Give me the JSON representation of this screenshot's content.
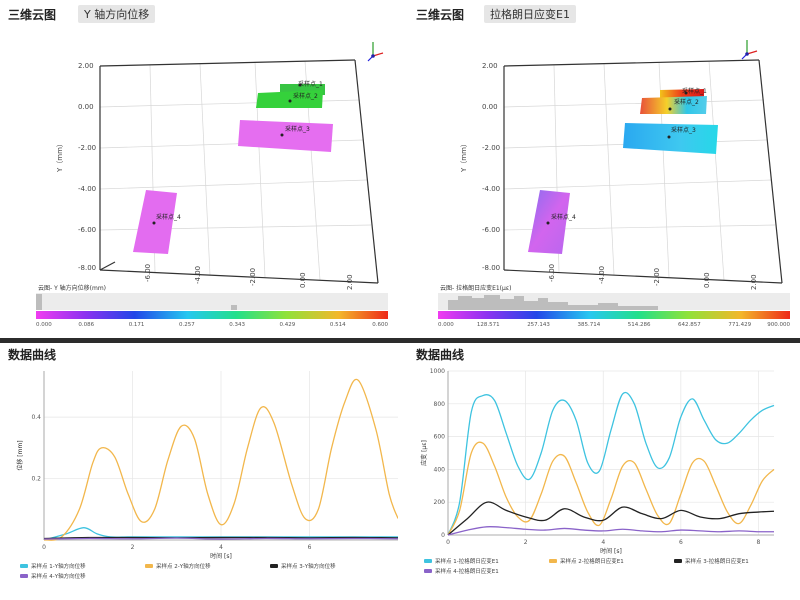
{
  "left_top": {
    "title": "三维云图",
    "badge": "Y 轴方向位移",
    "y_axis_label": "Y（mm）",
    "y_ticks": [
      "2.00",
      "0.00",
      "-2.00",
      "-4.00",
      "-6.00",
      "-8.00"
    ],
    "x_ticks": [
      "-6.00",
      "-4.00",
      "-2.00",
      "0.00",
      "2.00"
    ],
    "points": [
      "采样点_1",
      "采样点_2",
      "采样点_3",
      "采样点_4"
    ],
    "colorbar_label": "云图- Y 轴方向位移(mm)",
    "colorbar_ticks": [
      "0.000",
      "0.086",
      "0.171",
      "0.257",
      "0.343",
      "0.429",
      "0.514",
      "0.600"
    ]
  },
  "right_top": {
    "title": "三维云图",
    "badge": "拉格朗日应变E1",
    "y_axis_label": "Y（mm）",
    "y_ticks": [
      "2.00",
      "0.00",
      "-2.00",
      "-4.00",
      "-6.00",
      "-8.00"
    ],
    "x_ticks": [
      "-6.00",
      "-4.00",
      "-2.00",
      "0.00",
      "2.00"
    ],
    "points": [
      "采样点_1",
      "采样点_2",
      "采样点_3",
      "采样点_4"
    ],
    "colorbar_label": "云图- 拉格朗日应变E1(με)",
    "colorbar_ticks": [
      "0.000",
      "128.571",
      "257.143",
      "385.714",
      "514.286",
      "642.857",
      "771.429",
      "900.000"
    ]
  },
  "left_bottom": {
    "title": "数据曲线",
    "chart_data": {
      "type": "line",
      "xlabel": "时间 [s]",
      "ylabel": "位移 [mm]",
      "xlim": [
        0,
        8.0
      ],
      "ylim": [
        0,
        0.55
      ],
      "x_ticks": [
        0,
        2,
        4,
        6
      ],
      "y_ticks": [
        0.2,
        0.4
      ],
      "series": [
        {
          "name": "采样点 1-Y轴方向位移",
          "color": "#3ec3e0",
          "x": [
            0,
            0.5,
            0.9,
            1.2,
            1.5,
            1.9,
            2.3,
            2.7,
            3.1,
            3.6,
            4.1,
            4.6,
            5.0,
            5.5,
            6.0,
            6.5,
            6.9,
            7.3,
            7.7,
            8.0
          ],
          "y": [
            0,
            0.02,
            0.04,
            0.02,
            0.01,
            0.01,
            0.01,
            0.01,
            0.01,
            0.01,
            0.01,
            0.01,
            0.01,
            0.01,
            0.01,
            0.01,
            0.01,
            0.01,
            0.01,
            0.01
          ]
        },
        {
          "name": "采样点 2-Y轴方向位移",
          "color": "#f2b74c",
          "x": [
            0,
            0.4,
            0.8,
            1.1,
            1.3,
            1.6,
            1.9,
            2.2,
            2.5,
            2.8,
            3.1,
            3.4,
            3.7,
            4.0,
            4.3,
            4.6,
            4.9,
            5.2,
            5.6,
            5.9,
            6.2,
            6.5,
            6.8,
            7.1,
            7.5,
            7.8,
            8.0
          ],
          "y": [
            0,
            0.01,
            0.1,
            0.25,
            0.3,
            0.27,
            0.15,
            0.06,
            0.1,
            0.26,
            0.37,
            0.33,
            0.15,
            0.05,
            0.12,
            0.3,
            0.43,
            0.38,
            0.18,
            0.07,
            0.1,
            0.3,
            0.45,
            0.52,
            0.36,
            0.15,
            0.07
          ]
        },
        {
          "name": "采样点 3-Y轴方向位移",
          "color": "#222222",
          "x": [
            0,
            1,
            2,
            3,
            4,
            5,
            6,
            7,
            8
          ],
          "y": [
            0.005,
            0.008,
            0.008,
            0.007,
            0.008,
            0.008,
            0.007,
            0.008,
            0.007
          ]
        },
        {
          "name": "采样点 4-Y轴方向位移",
          "color": "#8a63c9",
          "x": [
            0,
            1,
            2,
            3,
            4,
            5,
            6,
            7,
            8
          ],
          "y": [
            0.003,
            0.005,
            0.004,
            0.006,
            0.003,
            0.005,
            0.004,
            0.005,
            0.004
          ]
        }
      ]
    }
  },
  "right_bottom": {
    "title": "数据曲线",
    "chart_data": {
      "type": "line",
      "xlabel": "时间 [s]",
      "ylabel": "应变 [με]",
      "xlim": [
        0,
        8.4
      ],
      "ylim": [
        0,
        1000
      ],
      "x_ticks": [
        0,
        2,
        4,
        6,
        8
      ],
      "y_ticks": [
        0,
        200,
        400,
        600,
        800,
        1000
      ],
      "series": [
        {
          "name": "采样点 1-拉格朗日应变E1",
          "color": "#3ec3e0",
          "x": [
            0,
            0.3,
            0.6,
            0.9,
            1.2,
            1.5,
            1.8,
            2.1,
            2.4,
            2.7,
            3.0,
            3.3,
            3.6,
            3.9,
            4.2,
            4.5,
            4.8,
            5.1,
            5.4,
            5.7,
            6.0,
            6.3,
            6.6,
            6.9,
            7.2,
            7.5,
            7.8,
            8.1,
            8.4
          ],
          "y": [
            0,
            200,
            750,
            850,
            820,
            620,
            420,
            340,
            500,
            760,
            820,
            700,
            440,
            390,
            640,
            860,
            800,
            560,
            410,
            470,
            720,
            830,
            700,
            580,
            560,
            620,
            700,
            760,
            790
          ]
        },
        {
          "name": "采样点 2-拉格朗日应变E1",
          "color": "#f2b74c",
          "x": [
            0,
            0.3,
            0.6,
            0.9,
            1.2,
            1.5,
            1.8,
            2.1,
            2.4,
            2.7,
            3.0,
            3.3,
            3.6,
            3.9,
            4.2,
            4.5,
            4.8,
            5.1,
            5.4,
            5.7,
            6.0,
            6.3,
            6.6,
            6.9,
            7.2,
            7.5,
            7.8,
            8.1,
            8.4
          ],
          "y": [
            0,
            150,
            500,
            560,
            420,
            230,
            110,
            90,
            250,
            450,
            480,
            320,
            140,
            60,
            220,
            420,
            440,
            280,
            120,
            70,
            250,
            440,
            450,
            300,
            140,
            70,
            180,
            330,
            400
          ]
        },
        {
          "name": "采样点 3-拉格朗日应变E1",
          "color": "#222222",
          "x": [
            0,
            0.5,
            1.0,
            1.5,
            2.0,
            2.5,
            3.0,
            3.5,
            4.0,
            4.5,
            5.0,
            5.5,
            6.0,
            6.5,
            7.0,
            7.5,
            8.0,
            8.4
          ],
          "y": [
            0,
            100,
            200,
            150,
            110,
            90,
            160,
            110,
            90,
            170,
            130,
            100,
            150,
            110,
            100,
            130,
            140,
            145
          ]
        },
        {
          "name": "采样点 4-拉格朗日应变E1",
          "color": "#8a63c9",
          "x": [
            0,
            0.5,
            1.0,
            1.5,
            2.0,
            2.5,
            3.0,
            3.5,
            4.0,
            4.5,
            5.0,
            5.5,
            6.0,
            6.5,
            7.0,
            7.5,
            8.0,
            8.4
          ],
          "y": [
            0,
            30,
            50,
            45,
            35,
            30,
            40,
            30,
            25,
            35,
            25,
            20,
            30,
            25,
            20,
            25,
            20,
            20
          ]
        }
      ]
    }
  }
}
